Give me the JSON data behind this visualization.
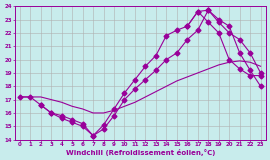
{
  "line1_x": [
    0,
    1,
    2,
    3,
    4,
    5,
    6,
    7,
    8,
    9,
    10,
    11,
    12,
    13,
    14,
    15,
    16,
    17,
    18,
    19,
    20,
    21,
    22,
    23
  ],
  "line1_y": [
    17.2,
    17.2,
    16.6,
    16.0,
    15.8,
    15.5,
    15.2,
    14.3,
    15.1,
    16.3,
    17.5,
    18.5,
    19.5,
    20.3,
    21.8,
    22.2,
    22.5,
    23.6,
    22.8,
    22.0,
    20.0,
    19.3,
    18.8,
    18.8
  ],
  "line2_x": [
    0,
    1,
    2,
    3,
    4,
    5,
    6,
    7,
    8,
    9,
    10,
    11,
    12,
    13,
    14,
    15,
    16,
    17,
    18,
    19,
    20,
    21,
    22,
    23
  ],
  "line2_y": [
    17.2,
    17.2,
    17.2,
    17.0,
    16.8,
    16.5,
    16.3,
    16.0,
    16.0,
    16.2,
    16.5,
    16.8,
    17.2,
    17.6,
    18.0,
    18.4,
    18.7,
    19.0,
    19.3,
    19.6,
    19.8,
    19.9,
    19.8,
    19.5
  ],
  "line3_x": [
    2,
    3,
    4,
    5,
    6,
    7,
    8,
    9,
    10,
    11,
    12,
    13,
    14,
    15,
    16,
    17,
    18,
    19,
    20,
    21,
    22,
    23
  ],
  "line3_y": [
    16.6,
    16.0,
    15.6,
    15.3,
    15.0,
    14.3,
    14.8,
    15.8,
    17.0,
    17.8,
    18.5,
    19.2,
    20.0,
    20.5,
    21.5,
    22.2,
    23.7,
    23.0,
    22.5,
    20.5,
    19.2,
    18.0
  ],
  "line4_x": [
    16,
    17,
    18,
    19,
    20,
    21,
    22,
    23
  ],
  "line4_y": [
    22.5,
    23.6,
    23.7,
    22.8,
    22.0,
    21.5,
    20.5,
    19.0
  ],
  "color": "#990099",
  "bg_color": "#c8ecec",
  "grid_color": "#b0b0b0",
  "xlim": [
    -0.5,
    23.5
  ],
  "ylim": [
    14,
    24
  ],
  "xtick_labels": [
    "0",
    "1",
    "2",
    "3",
    "4",
    "5",
    "6",
    "7",
    "8",
    "9",
    "10",
    "11",
    "12",
    "13",
    "14",
    "15",
    "16",
    "17",
    "18",
    "19",
    "20",
    "21",
    "22",
    "23"
  ],
  "ytick_labels": [
    "14",
    "15",
    "16",
    "17",
    "18",
    "19",
    "20",
    "21",
    "22",
    "23",
    "24"
  ],
  "xlabel": "Windchill (Refroidissement éolien,°C)",
  "marker": "D",
  "markersize": 2.5,
  "linewidth": 0.8
}
